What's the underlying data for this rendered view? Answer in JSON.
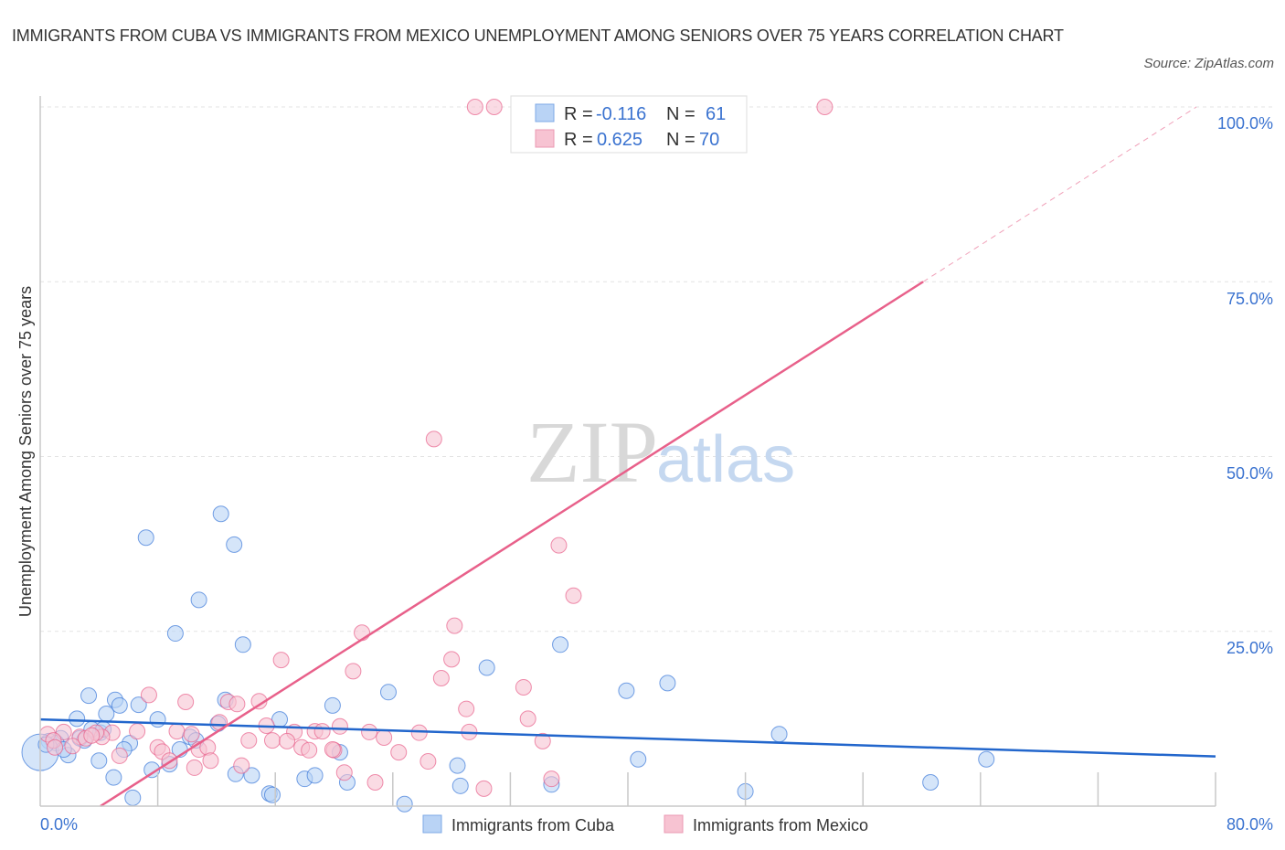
{
  "title": "IMMIGRANTS FROM CUBA VS IMMIGRANTS FROM MEXICO UNEMPLOYMENT AMONG SENIORS OVER 75 YEARS CORRELATION CHART",
  "source": "Source: ZipAtlas.com",
  "watermark": "ZIPatlas",
  "chart_data": {
    "type": "scatter",
    "title": "IMMIGRANTS FROM CUBA VS IMMIGRANTS FROM MEXICO UNEMPLOYMENT AMONG SENIORS OVER 75 YEARS CORRELATION CHART",
    "xlabel": "",
    "ylabel": "Unemployment Among Seniors over 75 years",
    "xlim": [
      0,
      80
    ],
    "ylim": [
      0,
      100
    ],
    "x_tick_labels": [
      "0.0%",
      "80.0%"
    ],
    "y_tick_labels": [
      "100.0%",
      "75.0%",
      "50.0%",
      "25.0%"
    ],
    "y_ticks": [
      100,
      75,
      50,
      25
    ],
    "grid": true,
    "legend_position": "top-center",
    "stats": [
      {
        "r_label": "R = ",
        "r": "-0.116",
        "n_label": "N = ",
        "n": "61"
      },
      {
        "r_label": "R = ",
        "r": "0.625",
        "n_label": "N = ",
        "n": "70"
      }
    ],
    "series": [
      {
        "name": "Immigrants from Cuba",
        "color": "#3b78d8",
        "fill": "#b9d3f5",
        "trend": [
          [
            0,
            12.4
          ],
          [
            80,
            7.1
          ]
        ],
        "points": [
          [
            7.2,
            38.4
          ],
          [
            12.3,
            41.8
          ],
          [
            13.2,
            37.4
          ],
          [
            10.8,
            29.5
          ],
          [
            9.2,
            24.7
          ],
          [
            13.8,
            23.1
          ],
          [
            30.4,
            19.8
          ],
          [
            35.4,
            23.1
          ],
          [
            39.9,
            16.5
          ],
          [
            42.7,
            17.6
          ],
          [
            23.7,
            16.3
          ],
          [
            19.9,
            14.4
          ],
          [
            3.3,
            15.8
          ],
          [
            5.1,
            15.2
          ],
          [
            6.7,
            14.5
          ],
          [
            5.4,
            14.4
          ],
          [
            4.5,
            13.2
          ],
          [
            2.5,
            12.5
          ],
          [
            8.0,
            12.4
          ],
          [
            12.6,
            15.2
          ],
          [
            16.3,
            12.4
          ],
          [
            12.1,
            11.8
          ],
          [
            10.2,
            9.9
          ],
          [
            9.5,
            8.1
          ],
          [
            10.6,
            9.4
          ],
          [
            6.1,
            9.0
          ],
          [
            4.1,
            10.5
          ],
          [
            3.5,
            11.0
          ],
          [
            2.7,
            9.7
          ],
          [
            1.4,
            9.7
          ],
          [
            0.6,
            9.3
          ],
          [
            1.1,
            9.0
          ],
          [
            1.9,
            7.3
          ],
          [
            4.0,
            6.5
          ],
          [
            5.7,
            8.1
          ],
          [
            7.6,
            5.2
          ],
          [
            8.8,
            6.0
          ],
          [
            5.0,
            4.1
          ],
          [
            6.3,
            1.2
          ],
          [
            13.3,
            4.6
          ],
          [
            14.4,
            4.4
          ],
          [
            15.6,
            1.8
          ],
          [
            15.8,
            1.6
          ],
          [
            18.0,
            3.9
          ],
          [
            18.7,
            4.4
          ],
          [
            20.4,
            7.7
          ],
          [
            20.9,
            3.4
          ],
          [
            24.8,
            0.3
          ],
          [
            28.4,
            5.8
          ],
          [
            28.6,
            2.9
          ],
          [
            34.8,
            3.1
          ],
          [
            40.7,
            6.7
          ],
          [
            48.0,
            2.1
          ],
          [
            50.3,
            10.3
          ],
          [
            60.6,
            3.4
          ],
          [
            64.4,
            6.7
          ],
          [
            0.0,
            7.7
          ],
          [
            0.4,
            8.8
          ],
          [
            1.6,
            8.1
          ],
          [
            4.3,
            11.0
          ],
          [
            3.0,
            9.4
          ]
        ]
      },
      {
        "name": "Immigrants from Mexico",
        "color": "#e8608a",
        "fill": "#f7c3d2",
        "trend": [
          [
            4.1,
            0
          ],
          [
            60.1,
            75
          ]
        ],
        "trend_extension": [
          [
            60.1,
            75
          ],
          [
            78.7,
            100
          ]
        ],
        "points": [
          [
            29.6,
            100
          ],
          [
            30.9,
            100
          ],
          [
            42.2,
            100
          ],
          [
            43.2,
            100
          ],
          [
            46.2,
            100
          ],
          [
            53.4,
            100
          ],
          [
            26.8,
            52.5
          ],
          [
            35.3,
            37.3
          ],
          [
            36.3,
            30.1
          ],
          [
            28.2,
            25.8
          ],
          [
            21.9,
            24.8
          ],
          [
            16.4,
            20.9
          ],
          [
            28.0,
            21.0
          ],
          [
            21.3,
            19.3
          ],
          [
            27.3,
            18.3
          ],
          [
            32.9,
            17.0
          ],
          [
            7.4,
            15.9
          ],
          [
            9.9,
            14.9
          ],
          [
            12.8,
            14.9
          ],
          [
            14.9,
            15.0
          ],
          [
            29.0,
            13.9
          ],
          [
            33.2,
            12.5
          ],
          [
            15.4,
            11.5
          ],
          [
            20.4,
            11.4
          ],
          [
            9.3,
            10.7
          ],
          [
            10.3,
            10.3
          ],
          [
            12.2,
            12.0
          ],
          [
            17.3,
            10.6
          ],
          [
            18.7,
            10.7
          ],
          [
            19.2,
            10.7
          ],
          [
            22.4,
            10.6
          ],
          [
            23.4,
            9.8
          ],
          [
            25.8,
            10.5
          ],
          [
            29.2,
            10.6
          ],
          [
            34.2,
            9.3
          ],
          [
            6.6,
            10.7
          ],
          [
            4.9,
            10.5
          ],
          [
            4.2,
            9.9
          ],
          [
            3.8,
            10.5
          ],
          [
            2.7,
            9.9
          ],
          [
            1.6,
            10.6
          ],
          [
            0.5,
            10.3
          ],
          [
            0.9,
            9.4
          ],
          [
            1.0,
            8.4
          ],
          [
            2.2,
            8.6
          ],
          [
            3.1,
            9.7
          ],
          [
            14.2,
            9.4
          ],
          [
            15.8,
            9.4
          ],
          [
            16.8,
            9.3
          ],
          [
            17.8,
            8.4
          ],
          [
            18.3,
            8.0
          ],
          [
            20.0,
            8.0
          ],
          [
            24.4,
            7.7
          ],
          [
            26.4,
            6.4
          ],
          [
            19.9,
            8.1
          ],
          [
            8.0,
            8.4
          ],
          [
            8.3,
            7.8
          ],
          [
            10.8,
            8.1
          ],
          [
            11.4,
            8.4
          ],
          [
            11.6,
            6.5
          ],
          [
            13.7,
            5.8
          ],
          [
            10.5,
            5.5
          ],
          [
            8.8,
            6.5
          ],
          [
            5.4,
            7.2
          ],
          [
            22.8,
            3.4
          ],
          [
            30.2,
            2.5
          ],
          [
            34.8,
            3.9
          ],
          [
            20.7,
            4.8
          ],
          [
            13.4,
            14.6
          ],
          [
            3.5,
            10.1
          ]
        ]
      }
    ]
  }
}
